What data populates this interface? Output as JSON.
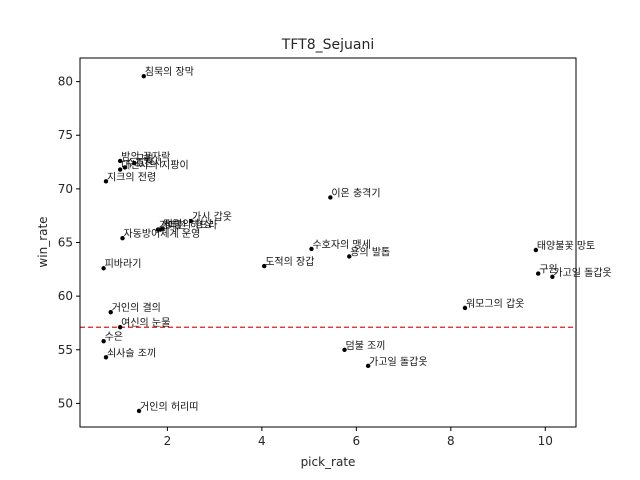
{
  "chart_data": {
    "type": "scatter",
    "title": "TFT8_Sejuani",
    "xlabel": "pick_rate",
    "ylabel": "win_rate",
    "xlim": [
      0.15,
      10.65
    ],
    "ylim": [
      47.8,
      82.2
    ],
    "xticks": [
      2,
      4,
      6,
      8,
      10
    ],
    "yticks": [
      50,
      55,
      60,
      65,
      70,
      75,
      80
    ],
    "reference_line": {
      "y": 57.1,
      "color": "#e31a1c",
      "style": "dashed"
    },
    "point_color": "#000000",
    "points": [
      {
        "label": "침묵의 장막",
        "x": 1.5,
        "y": 80.5
      },
      {
        "label": "밤의 끝자락",
        "x": 1.0,
        "y": 72.6
      },
      {
        "label": "구원",
        "x": 1.3,
        "y": 72.4
      },
      {
        "label": "수호천사",
        "x": 1.1,
        "y": 72.0
      },
      {
        "label": "대천사의 지팡이",
        "x": 1.0,
        "y": 71.8
      },
      {
        "label": "지크의 전령",
        "x": 0.7,
        "y": 70.7
      },
      {
        "label": "이온 충격기",
        "x": 5.45,
        "y": 69.2
      },
      {
        "label": "가시 갑옷",
        "x": 2.5,
        "y": 67.0
      },
      {
        "label": "정령의 형상",
        "x": 1.9,
        "y": 66.3
      },
      {
        "label": "거대한 히드라",
        "x": 1.8,
        "y": 66.2
      },
      {
        "label": "헌터",
        "x": 1.85,
        "y": 66.2
      },
      {
        "label": "자동방어체계 운영",
        "x": 1.05,
        "y": 65.4
      },
      {
        "label": "수호자의 맹세",
        "x": 5.05,
        "y": 64.4
      },
      {
        "label": "용의 발톱",
        "x": 5.85,
        "y": 63.7
      },
      {
        "label": "태양불꽃 망토",
        "x": 9.8,
        "y": 64.3
      },
      {
        "label": "도적의 장갑",
        "x": 4.05,
        "y": 62.8
      },
      {
        "label": "피바라기",
        "x": 0.65,
        "y": 62.6
      },
      {
        "label": "구원",
        "x": 9.85,
        "y": 62.1
      },
      {
        "label": "가고일 돌갑옷",
        "x": 10.15,
        "y": 61.8
      },
      {
        "label": "워모그의 갑옷",
        "x": 8.3,
        "y": 58.9
      },
      {
        "label": "거인의 결의",
        "x": 0.8,
        "y": 58.5
      },
      {
        "label": "여신의 눈물",
        "x": 1.0,
        "y": 57.1
      },
      {
        "label": "수은",
        "x": 0.65,
        "y": 55.8
      },
      {
        "label": "덤불 조끼",
        "x": 5.75,
        "y": 55.0
      },
      {
        "label": "쇠사슬 조끼",
        "x": 0.7,
        "y": 54.3
      },
      {
        "label": "가고일 돌갑옷",
        "x": 6.25,
        "y": 53.5
      },
      {
        "label": "거인의 허리띠",
        "x": 1.4,
        "y": 49.3
      }
    ]
  }
}
